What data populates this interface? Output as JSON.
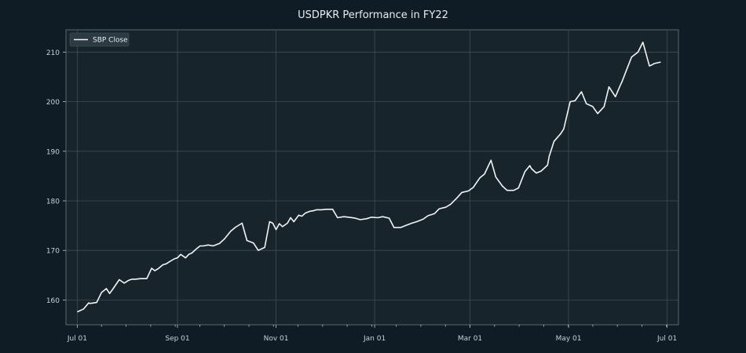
{
  "chart_data": {
    "type": "line",
    "title": "USDPKR Performance in FY22",
    "xlabel": "",
    "ylabel": "",
    "xlim": [
      "2021-06-24",
      "2022-07-08"
    ],
    "ylim": [
      155,
      214.5
    ],
    "grid": true,
    "legend_position": "top-left",
    "colors": {
      "background": "#101c25",
      "plot_background": "#17242c",
      "line": "#f2f4f5",
      "grid": "#3e4c56"
    },
    "x_ticks": [
      {
        "date": "2021-07-01",
        "label": "Jul 01"
      },
      {
        "date": "2021-09-01",
        "label": "Sep 01"
      },
      {
        "date": "2021-11-01",
        "label": "Nov 01"
      },
      {
        "date": "2022-01-01",
        "label": "Jan 01"
      },
      {
        "date": "2022-03-01",
        "label": "Mar 01"
      },
      {
        "date": "2022-05-01",
        "label": "May 01"
      },
      {
        "date": "2022-07-01",
        "label": "Jul 01"
      }
    ],
    "y_ticks": [
      {
        "value": 160,
        "label": "160"
      },
      {
        "value": 170,
        "label": "170"
      },
      {
        "value": 180,
        "label": "180"
      },
      {
        "value": 190,
        "label": "190"
      },
      {
        "value": 200,
        "label": "200"
      },
      {
        "value": 210,
        "label": "210"
      }
    ],
    "series": [
      {
        "name": "SBP Close",
        "x": [
          "2021-07-01",
          "2021-07-05",
          "2021-07-08",
          "2021-07-09",
          "2021-07-13",
          "2021-07-16",
          "2021-07-19",
          "2021-07-21",
          "2021-07-23",
          "2021-07-27",
          "2021-07-30",
          "2021-08-02",
          "2021-08-04",
          "2021-08-06",
          "2021-08-09",
          "2021-08-11",
          "2021-08-13",
          "2021-08-16",
          "2021-08-18",
          "2021-08-20",
          "2021-08-23",
          "2021-08-25",
          "2021-08-27",
          "2021-08-30",
          "2021-09-01",
          "2021-09-03",
          "2021-09-06",
          "2021-09-08",
          "2021-09-10",
          "2021-09-13",
          "2021-09-15",
          "2021-09-17",
          "2021-09-20",
          "2021-09-23",
          "2021-09-27",
          "2021-09-30",
          "2021-10-04",
          "2021-10-07",
          "2021-10-11",
          "2021-10-14",
          "2021-10-18",
          "2021-10-21",
          "2021-10-25",
          "2021-10-28",
          "2021-10-30",
          "2021-11-01",
          "2021-11-03",
          "2021-11-05",
          "2021-11-08",
          "2021-11-10",
          "2021-11-12",
          "2021-11-15",
          "2021-11-17",
          "2021-11-19",
          "2021-11-22",
          "2021-11-24",
          "2021-11-26",
          "2021-11-29",
          "2021-12-02",
          "2021-12-06",
          "2021-12-09",
          "2021-12-13",
          "2021-12-16",
          "2021-12-20",
          "2021-12-23",
          "2021-12-27",
          "2021-12-30",
          "2022-01-03",
          "2022-01-06",
          "2022-01-10",
          "2022-01-13",
          "2022-01-17",
          "2022-01-20",
          "2022-01-24",
          "2022-01-27",
          "2022-01-31",
          "2022-02-03",
          "2022-02-07",
          "2022-02-10",
          "2022-02-14",
          "2022-02-17",
          "2022-02-21",
          "2022-02-24",
          "2022-02-28",
          "2022-03-03",
          "2022-03-07",
          "2022-03-10",
          "2022-03-14",
          "2022-03-17",
          "2022-03-21",
          "2022-03-24",
          "2022-03-28",
          "2022-03-31",
          "2022-04-04",
          "2022-04-07",
          "2022-04-08",
          "2022-04-11",
          "2022-04-14",
          "2022-04-18",
          "2022-04-19",
          "2022-04-22",
          "2022-04-26",
          "2022-04-28",
          "2022-05-02",
          "2022-05-05",
          "2022-05-09",
          "2022-05-12",
          "2022-05-16",
          "2022-05-19",
          "2022-05-23",
          "2022-05-26",
          "2022-05-30",
          "2022-06-02",
          "2022-06-03",
          "2022-06-06",
          "2022-06-09",
          "2022-06-13",
          "2022-06-16",
          "2022-06-20",
          "2022-06-22",
          "2022-06-23",
          "2022-06-27"
        ],
        "y": [
          157.6,
          158.2,
          159.4,
          159.3,
          159.5,
          161.5,
          162.3,
          161.3,
          162.2,
          164.1,
          163.4,
          164.0,
          164.2,
          164.2,
          164.3,
          164.3,
          164.3,
          166.4,
          165.9,
          166.3,
          167.1,
          167.3,
          167.7,
          168.3,
          168.5,
          169.2,
          168.5,
          169.2,
          169.5,
          170.4,
          170.9,
          170.9,
          171.1,
          170.9,
          171.4,
          172.3,
          173.9,
          174.7,
          175.5,
          172.0,
          171.5,
          170.0,
          170.6,
          175.8,
          175.5,
          174.2,
          175.4,
          174.8,
          175.5,
          176.6,
          175.8,
          177.1,
          176.9,
          177.5,
          177.9,
          178.0,
          178.2,
          178.2,
          178.3,
          178.3,
          176.6,
          176.8,
          176.7,
          176.5,
          176.2,
          176.4,
          176.7,
          176.6,
          176.8,
          176.5,
          174.6,
          174.6,
          175.0,
          175.5,
          175.8,
          176.3,
          177.0,
          177.4,
          178.4,
          178.7,
          179.3,
          180.6,
          181.7,
          182.0,
          182.7,
          184.6,
          185.4,
          188.2,
          184.8,
          183.0,
          182.1,
          182.1,
          182.6,
          185.9,
          187.1,
          186.5,
          185.6,
          186.0,
          187.2,
          189.0,
          192.0,
          193.5,
          194.5,
          200.0,
          200.2,
          202.0,
          199.6,
          199.0,
          197.6,
          199.0,
          203.0,
          201.0,
          203.3,
          204.0,
          206.5,
          209.0,
          210.0,
          212.0,
          207.2,
          207.5,
          207.7,
          208.0
        ]
      }
    ]
  }
}
